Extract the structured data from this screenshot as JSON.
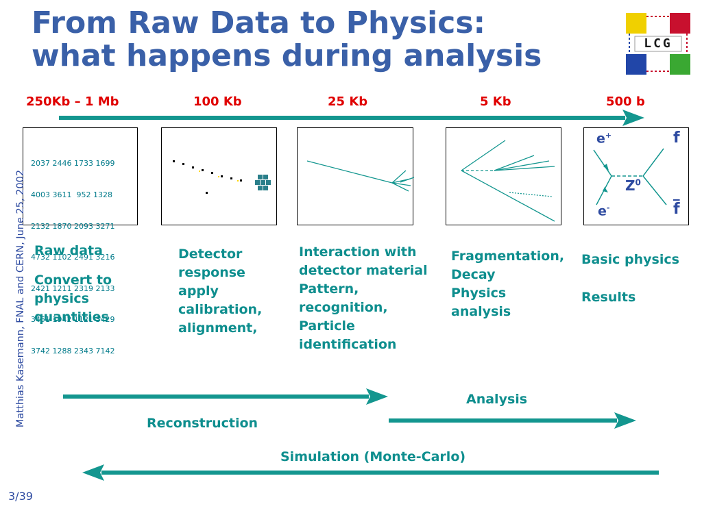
{
  "slide": {
    "title_line1": "From Raw Data to Physics:",
    "title_line2": "what happens during analysis",
    "side_note": "Matthias Kasemann, FNAL and CERN, June 25, 2002",
    "page_number": "3/39"
  },
  "logo": {
    "text": "LCG",
    "colors": [
      "#f0d000",
      "#c8102e",
      "#2146a8",
      "#3aa832"
    ]
  },
  "data_sizes": [
    "250Kb – 1 Mb",
    "100 Kb",
    "25 Kb",
    "5 Kb",
    "500 b"
  ],
  "raw_data": {
    "rows": [
      "2037 2446 1733 1699",
      "4003 3611  952 1328",
      "2132 1870 2093 3271",
      "4732 1102 2491 3216",
      "2421 1211 2319 2133",
      "3451 1942 1121 3429",
      "3742 1288 2343 7142"
    ]
  },
  "feynman": {
    "e_plus": "e",
    "e_plus_sup": "+",
    "e_minus": "e",
    "e_minus_sup": "-",
    "z_boson": "Z",
    "z_sup": "0",
    "f": "f",
    "f_bar": "f"
  },
  "descriptions": {
    "col1_a": "Raw data",
    "col1_b": [
      "Convert to",
      "physics",
      "quantities"
    ],
    "col2": [
      "Detector",
      "response",
      "apply",
      "calibration,",
      "alignment,"
    ],
    "col3": [
      "Interaction with",
      "detector material",
      "Pattern,",
      "recognition,",
      "Particle",
      "identification"
    ],
    "col4": [
      "Fragmentation,",
      "Decay",
      "Physics",
      "analysis"
    ],
    "col5_a": "Basic physics",
    "col5_b": "Results"
  },
  "flows": {
    "analysis": "Analysis",
    "reconstruction": "Reconstruction",
    "simulation": "Simulation (Monte-Carlo)"
  },
  "colors": {
    "arrow": "#13968f",
    "title": "#3a60a8",
    "size_label": "#e00000",
    "text": "#0e8e8e"
  }
}
